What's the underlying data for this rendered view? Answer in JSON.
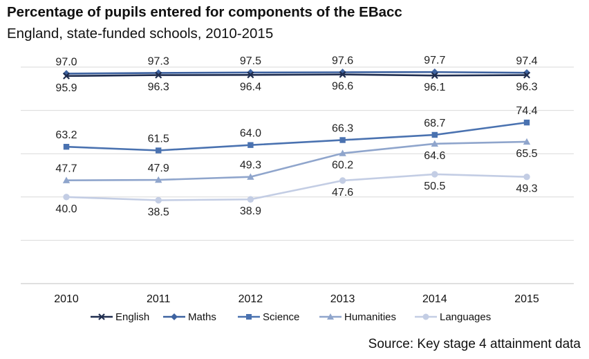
{
  "title": "Percentage of pupils entered for components of the EBacc",
  "subtitle": "England, state-funded schools, 2010-2015",
  "source": "Source: Key stage 4 attainment data",
  "chart_data": {
    "type": "line",
    "x": [
      "2010",
      "2011",
      "2012",
      "2013",
      "2014",
      "2015"
    ],
    "ylim": [
      0,
      100
    ],
    "grid": true,
    "legend_position": "bottom",
    "series": [
      {
        "name": "English",
        "values": [
          95.9,
          96.3,
          96.4,
          96.6,
          96.1,
          96.3
        ],
        "color": "#1f2d4f",
        "marker": "x",
        "label_side": "below"
      },
      {
        "name": "Maths",
        "values": [
          97.0,
          97.3,
          97.5,
          97.6,
          97.7,
          97.4
        ],
        "color": "#3d62a0",
        "marker": "diamond",
        "label_side": "above"
      },
      {
        "name": "Science",
        "values": [
          63.2,
          61.5,
          64.0,
          66.3,
          68.7,
          74.4
        ],
        "color": "#4a72b0",
        "marker": "square",
        "label_side": "above"
      },
      {
        "name": "Humanities",
        "values": [
          47.7,
          47.9,
          49.3,
          60.2,
          64.6,
          65.5
        ],
        "color": "#8fa5cc",
        "marker": "triangle",
        "label_side": "mixed"
      },
      {
        "name": "Languages",
        "values": [
          40.0,
          38.5,
          38.9,
          47.6,
          50.5,
          49.3
        ],
        "color": "#c3cde4",
        "marker": "circle",
        "label_side": "below"
      }
    ]
  }
}
